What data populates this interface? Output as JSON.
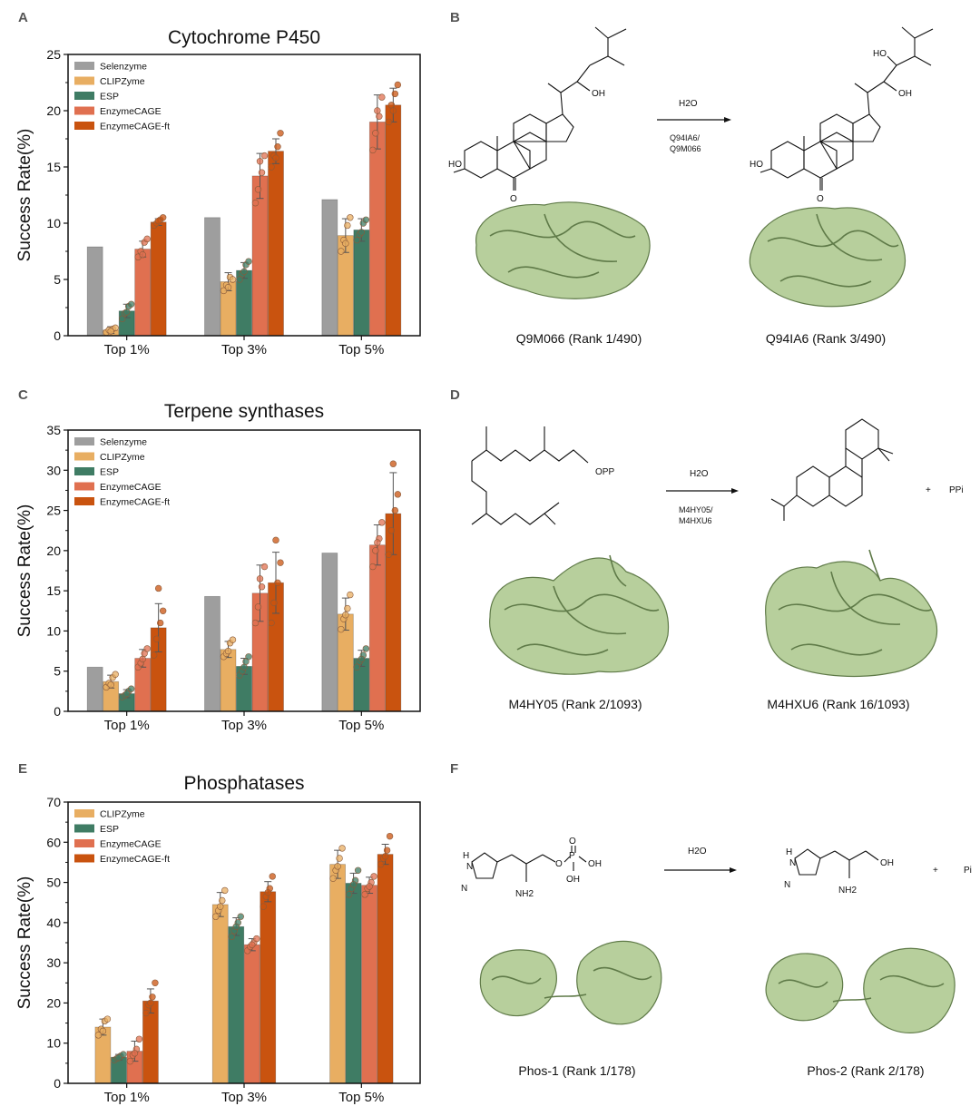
{
  "panel_letters": [
    "A",
    "B",
    "C",
    "D",
    "E",
    "F"
  ],
  "chart_data": [
    {
      "type": "bar",
      "panel": "A",
      "title": "Cytochrome P450",
      "ylabel": "Success Rate(%)",
      "xlabel": "",
      "categories": [
        "Top 1%",
        "Top 3%",
        "Top 5%"
      ],
      "ylim": [
        0,
        25
      ],
      "yticks": [
        0,
        5,
        10,
        15,
        20,
        25
      ],
      "legend_position": "top-left",
      "series": [
        {
          "name": "Selenzyme",
          "color": "#9e9e9e",
          "values": [
            7.9,
            10.5,
            12.1
          ],
          "errors": null,
          "points": null
        },
        {
          "name": "CLIPZyme",
          "color": "#e8ae62",
          "values": [
            0.5,
            4.8,
            8.9
          ],
          "errors": [
            0.3,
            0.8,
            1.5
          ],
          "points": [
            [
              0.3,
              0.5,
              0.6,
              0.7,
              0.4
            ],
            [
              4.0,
              4.5,
              5.2,
              5.0,
              4.3
            ],
            [
              7.5,
              8.5,
              9.8,
              10.5,
              8.2
            ]
          ]
        },
        {
          "name": "ESP",
          "color": "#3f7c64",
          "values": [
            2.2,
            5.8,
            9.4
          ],
          "errors": [
            0.6,
            0.7,
            1.0
          ],
          "points": [
            [
              1.5,
              2.0,
              2.6,
              2.8,
              2.1
            ],
            [
              5.0,
              5.5,
              6.3,
              6.6,
              5.7
            ],
            [
              8.5,
              9.0,
              10.0,
              10.3,
              9.2
            ]
          ]
        },
        {
          "name": "EnzymeCAGE",
          "color": "#e07050",
          "values": [
            7.7,
            14.2,
            19.0
          ],
          "errors": [
            0.7,
            2.0,
            2.4
          ],
          "points": [
            [
              7.0,
              7.5,
              8.3,
              8.6,
              7.2
            ],
            [
              11.8,
              13.0,
              14.5,
              16.0,
              15.5
            ],
            [
              16.5,
              18.0,
              19.5,
              21.2,
              20.0
            ]
          ]
        },
        {
          "name": "EnzymeCAGE-ft",
          "color": "#c9530f",
          "values": [
            10.1,
            16.4,
            20.5
          ],
          "errors": [
            0.3,
            1.1,
            1.5
          ],
          "points": [
            [
              9.8,
              10.0,
              10.3,
              10.5,
              10.2
            ],
            [
              15.0,
              16.0,
              16.8,
              18.0,
              15.8
            ],
            [
              19.0,
              20.5,
              21.5,
              22.3,
              20.0
            ]
          ]
        }
      ]
    },
    {
      "type": "bar",
      "panel": "C",
      "title": "Terpene synthases",
      "ylabel": "Success Rate(%)",
      "xlabel": "",
      "categories": [
        "Top 1%",
        "Top 3%",
        "Top 5%"
      ],
      "ylim": [
        0,
        35
      ],
      "yticks": [
        0,
        5,
        10,
        15,
        20,
        25,
        30,
        35
      ],
      "legend_position": "top-left",
      "series": [
        {
          "name": "Selenzyme",
          "color": "#9e9e9e",
          "values": [
            5.5,
            14.3,
            19.7
          ],
          "errors": null,
          "points": null
        },
        {
          "name": "CLIPZyme",
          "color": "#e8ae62",
          "values": [
            3.7,
            7.7,
            12.1
          ],
          "errors": [
            0.8,
            1.0,
            2.0
          ],
          "points": [
            [
              3.0,
              3.5,
              4.2,
              4.6,
              3.3
            ],
            [
              6.8,
              7.2,
              8.5,
              8.9,
              7.5
            ],
            [
              10.2,
              11.5,
              12.8,
              14.5,
              12.0
            ]
          ]
        },
        {
          "name": "ESP",
          "color": "#3f7c64",
          "values": [
            2.2,
            5.6,
            6.6
          ],
          "errors": [
            0.5,
            1.0,
            1.0
          ],
          "points": [
            [
              1.8,
              2.0,
              2.5,
              2.8,
              2.2
            ],
            [
              4.5,
              5.0,
              6.2,
              6.8,
              5.5
            ],
            [
              5.5,
              6.2,
              7.0,
              7.8,
              6.5
            ]
          ]
        },
        {
          "name": "EnzymeCAGE",
          "color": "#e07050",
          "values": [
            6.6,
            14.7,
            20.7
          ],
          "errors": [
            1.1,
            3.5,
            2.5
          ],
          "points": [
            [
              5.5,
              6.0,
              7.2,
              7.8,
              6.5
            ],
            [
              11.0,
              13.0,
              15.5,
              18.0,
              16.5
            ],
            [
              18.0,
              20.0,
              21.5,
              23.5,
              21.0
            ]
          ]
        },
        {
          "name": "EnzymeCAGE-ft",
          "color": "#c9530f",
          "values": [
            10.4,
            16.0,
            24.6
          ],
          "errors": [
            3.0,
            3.8,
            5.1
          ],
          "points": [
            [
              7.0,
              9.0,
              11.0,
              12.5,
              15.3
            ],
            [
              11.0,
              13.5,
              16.0,
              18.5,
              21.3
            ],
            [
              19.5,
              22.5,
              25.0,
              27.0,
              30.8
            ]
          ]
        }
      ]
    },
    {
      "type": "bar",
      "panel": "E",
      "title": "Phosphatases",
      "ylabel": "Success Rate(%)",
      "xlabel": "",
      "categories": [
        "Top 1%",
        "Top 3%",
        "Top 5%"
      ],
      "ylim": [
        0,
        70
      ],
      "yticks": [
        0,
        10,
        20,
        30,
        40,
        50,
        60,
        70
      ],
      "legend_position": "top-left",
      "series": [
        {
          "name": "CLIPZyme",
          "color": "#e8ae62",
          "values": [
            14.0,
            44.5,
            54.5
          ],
          "errors": [
            2.0,
            3.0,
            3.5
          ],
          "points": [
            [
              12.0,
              13.5,
              15.5,
              16.0,
              13.0
            ],
            [
              41.5,
              43.0,
              45.5,
              48.0,
              44.0
            ],
            [
              51.0,
              53.0,
              56.0,
              58.5,
              54.0
            ]
          ]
        },
        {
          "name": "ESP",
          "color": "#3f7c64",
          "values": [
            6.5,
            39.0,
            49.8
          ],
          "errors": [
            0.7,
            2.2,
            2.5
          ],
          "points": [
            [
              5.8,
              6.2,
              6.8,
              7.2,
              6.4
            ],
            [
              36.5,
              38.0,
              40.0,
              41.5,
              39.0
            ],
            [
              47.0,
              48.5,
              50.5,
              53.0,
              49.5
            ]
          ]
        },
        {
          "name": "EnzymeCAGE",
          "color": "#e07050",
          "values": [
            8.0,
            34.5,
            49.3
          ],
          "errors": [
            2.5,
            1.5,
            2.0
          ],
          "points": [
            [
              5.5,
              7.0,
              8.5,
              11.0,
              7.5
            ],
            [
              33.0,
              34.0,
              35.0,
              36.0,
              34.5
            ],
            [
              47.0,
              48.5,
              50.0,
              51.5,
              49.0
            ]
          ]
        },
        {
          "name": "EnzymeCAGE-ft",
          "color": "#c9530f",
          "values": [
            20.5,
            47.7,
            57.0
          ],
          "errors": [
            3.0,
            2.5,
            2.5
          ],
          "points": [
            [
              17.5,
              19.5,
              21.5,
              25.0,
              20.0
            ],
            [
              44.0,
              46.5,
              48.5,
              51.5,
              47.5
            ],
            [
              54.5,
              56.0,
              58.0,
              61.5,
              56.5
            ]
          ]
        }
      ]
    }
  ],
  "panel_b": {
    "reaction_agent": "H2O",
    "enzyme_ids": [
      "Q94IA6/",
      "Q9M066"
    ],
    "substrate_labels": {
      "ho": "HO",
      "oh": "OH",
      "o": "O"
    },
    "product_labels": {
      "ho1": "HO",
      "ho2": "HO",
      "oh": "OH",
      "o": "O"
    },
    "captions": [
      "Q9M066 (Rank 1/490)",
      "Q94IA6 (Rank 3/490)"
    ]
  },
  "panel_d": {
    "reaction_agent": "H2O",
    "enzyme_ids": [
      "M4HY05/",
      "M4HXU6"
    ],
    "substrate_label": "OPP",
    "product_plus": "+",
    "byproduct": "PPi",
    "captions": [
      "M4HY05 (Rank 2/1093)",
      "M4HXU6 (Rank 16/1093)"
    ]
  },
  "panel_f": {
    "reaction_agent": "H2O",
    "substrate_labels": {
      "nh": "H",
      "n": "N",
      "n2": "N",
      "nh2": "NH2",
      "o": "O",
      "p": "P",
      "o_top": "O",
      "oh1": "OH",
      "oh2": "OH"
    },
    "product_labels": {
      "nh": "H",
      "n": "N",
      "n2": "N",
      "nh2": "NH2",
      "oh": "OH"
    },
    "product_plus": "+",
    "byproduct": "Pi",
    "captions": [
      "Phos-1 (Rank 1/178)",
      "Phos-2 (Rank 2/178)"
    ]
  }
}
